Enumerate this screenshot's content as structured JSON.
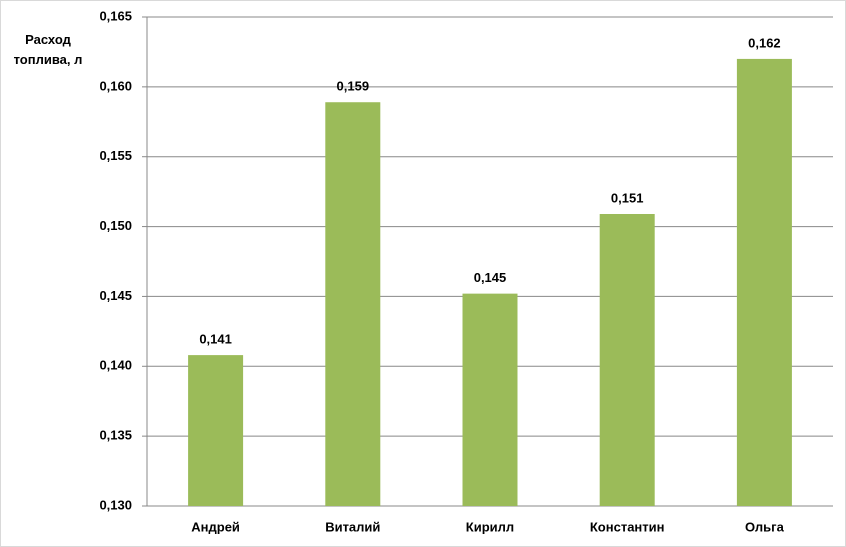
{
  "chart_data": {
    "type": "bar",
    "y_label": "Расход топлива, л",
    "categories": [
      "Андрей",
      "Виталий",
      "Кирилл",
      "Константин",
      "Ольга"
    ],
    "values": [
      0.1408,
      0.1589,
      0.1452,
      0.1509,
      0.162
    ],
    "value_labels": [
      "0,141",
      "0,159",
      "0,145",
      "0,151",
      "0,162"
    ],
    "color": "#9bbb59",
    "ylim": [
      0.13,
      0.165
    ],
    "yticks": [
      {
        "value": 0.13,
        "label": "0,130"
      },
      {
        "value": 0.135,
        "label": "0,135"
      },
      {
        "value": 0.14,
        "label": "0,140"
      },
      {
        "value": 0.145,
        "label": "0,145"
      },
      {
        "value": 0.15,
        "label": "0,150"
      },
      {
        "value": 0.155,
        "label": "0,155"
      },
      {
        "value": 0.16,
        "label": "0,160"
      },
      {
        "value": 0.165,
        "label": "0,165"
      }
    ],
    "grid": true
  }
}
